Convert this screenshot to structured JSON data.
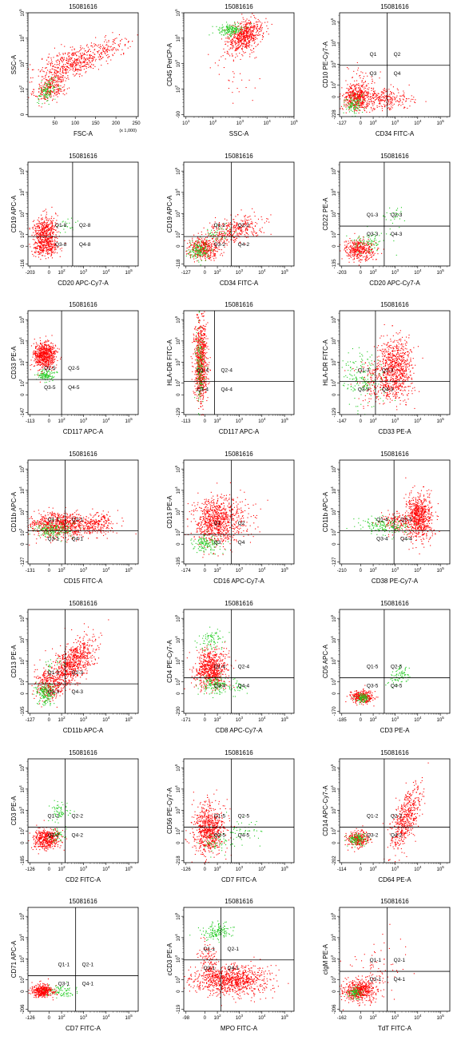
{
  "colors": {
    "primary_events": "#ff0000",
    "gated_events": "#22cc22",
    "axes": "#000000"
  },
  "chart_data": [
    {
      "type": "scatter",
      "title": "15081616",
      "xlabel": "FSC-A",
      "ylabel": "SSC-A",
      "x_scale": "linear",
      "y_scale": "log",
      "x_ticks": [
        "50",
        "100",
        "150",
        "200",
        "250"
      ],
      "x_unit_note": "(x 1,000)",
      "y_ticks": [
        "0",
        "10^2",
        "10^3",
        "10^4",
        "10^5"
      ],
      "quadrant_lines": null,
      "quadrant_labels": []
    },
    {
      "type": "scatter",
      "title": "15081616",
      "xlabel": "SSC-A",
      "ylabel": "CD45 PerCP-A",
      "x_scale": "log",
      "y_scale": "log",
      "x_ticks": [
        "10^1",
        "10^2",
        "10^3",
        "10^4",
        "10^5"
      ],
      "y_ticks": [
        "-90",
        "10^2",
        "10^3",
        "10^4",
        "10^5"
      ],
      "quadrant_lines": null,
      "quadrant_labels": []
    },
    {
      "type": "scatter",
      "title": "15081616",
      "xlabel": "CD34 FITC-A",
      "ylabel": "CD10 PE-Cy7-A",
      "x_scale": "biexponential",
      "y_scale": "biexponential",
      "x_ticks": [
        "-127",
        "0",
        "10^2",
        "10^3",
        "10^4",
        "10^5"
      ],
      "y_ticks": [
        "-228",
        "0",
        "10^2",
        "10^3",
        "10^4",
        "10^5"
      ],
      "quadrant_lines": {
        "x": 450,
        "y": 900
      },
      "quadrant_labels": [
        "Q1",
        "Q2",
        "Q3",
        "Q4"
      ]
    },
    {
      "type": "scatter",
      "title": "15081616",
      "xlabel": "CD20 APC-Cy7-A",
      "ylabel": "CD19 APC-A",
      "x_scale": "biexponential",
      "y_scale": "biexponential",
      "x_ticks": [
        "-203",
        "0",
        "10^2",
        "10^3",
        "10^4",
        "10^5"
      ],
      "y_ticks": [
        "-116",
        "0",
        "10^2",
        "10^3",
        "10^4",
        "10^5"
      ],
      "quadrant_lines": {
        "x": 330,
        "y": 75
      },
      "quadrant_labels": [
        "Q1-8",
        "Q2-8",
        "Q3-8",
        "Q4-8"
      ]
    },
    {
      "type": "scatter",
      "title": "15081616",
      "xlabel": "CD34 FITC-A",
      "ylabel": "CD19 APC-A",
      "x_scale": "biexponential",
      "y_scale": "biexponential",
      "x_ticks": [
        "-127",
        "0",
        "10^2",
        "10^3",
        "10^4",
        "10^5"
      ],
      "y_ticks": [
        "-118",
        "0",
        "10^2",
        "10^3",
        "10^4",
        "10^5"
      ],
      "quadrant_lines": {
        "x": 450,
        "y": 75
      },
      "quadrant_labels": [
        "Q1-2",
        "Q2-2",
        "Q3-2",
        "Q4-2"
      ]
    },
    {
      "type": "scatter",
      "title": "15081616",
      "xlabel": "CD20 APC-Cy7-A",
      "ylabel": "CD22 PE-A",
      "x_scale": "biexponential",
      "y_scale": "biexponential",
      "x_ticks": [
        "-203",
        "0",
        "10^2",
        "10^3",
        "10^4",
        "10^5"
      ],
      "y_ticks": [
        "-135",
        "0",
        "10^2",
        "10^3",
        "10^4",
        "10^5"
      ],
      "quadrant_lines": {
        "x": 330,
        "y": 260
      },
      "quadrant_labels": [
        "Q1-3",
        "Q2-3",
        "Q3-3",
        "Q4-3"
      ]
    },
    {
      "type": "scatter",
      "title": "15081616",
      "xlabel": "CD117 APC-A",
      "ylabel": "CD33 PE-A",
      "x_scale": "biexponential",
      "y_scale": "biexponential",
      "x_ticks": [
        "-113",
        "0",
        "10^2",
        "10^3",
        "10^4",
        "10^5"
      ],
      "y_ticks": [
        "-147",
        "0",
        "10^2",
        "10^3",
        "10^4",
        "10^5"
      ],
      "quadrant_lines": {
        "x": 100,
        "y": 150
      },
      "quadrant_labels": [
        "Q1-5",
        "Q2-5",
        "Q3-5",
        "Q4-5"
      ]
    },
    {
      "type": "scatter",
      "title": "15081616",
      "xlabel": "CD117 APC-A",
      "ylabel": "HLA-DR FITC-A",
      "x_scale": "biexponential",
      "y_scale": "biexponential",
      "x_ticks": [
        "-113",
        "0",
        "10^2",
        "10^3",
        "10^4",
        "10^5"
      ],
      "y_ticks": [
        "-129",
        "0",
        "10^2",
        "10^3",
        "10^4",
        "10^5"
      ],
      "quadrant_lines": {
        "x": 70,
        "y": 120
      },
      "quadrant_labels": [
        "Q1-4",
        "Q2-4",
        "Q3-4",
        "Q4-4"
      ]
    },
    {
      "type": "scatter",
      "title": "15081616",
      "xlabel": "CD33 PE-A",
      "ylabel": "HLA-DR FITC-A",
      "x_scale": "biexponential",
      "y_scale": "biexponential",
      "x_ticks": [
        "-147",
        "0",
        "10^2",
        "10^3",
        "10^4",
        "10^5"
      ],
      "y_ticks": [
        "-129",
        "0",
        "10^2",
        "10^3",
        "10^4",
        "10^5"
      ],
      "quadrant_lines": {
        "x": 130,
        "y": 120
      },
      "quadrant_labels": [
        "Q1-3",
        "Q2-3",
        "Q3-3",
        "Q4-3"
      ]
    },
    {
      "type": "scatter",
      "title": "15081616",
      "xlabel": "CD15 FITC-A",
      "ylabel": "CD11b APC-A",
      "x_scale": "biexponential",
      "y_scale": "biexponential",
      "x_ticks": [
        "-131",
        "0",
        "10^2",
        "10^3",
        "10^4",
        "10^5"
      ],
      "y_ticks": [
        "-127",
        "0",
        "10^2",
        "10^3",
        "10^4",
        "10^5"
      ],
      "quadrant_lines": {
        "x": 150,
        "y": 120
      },
      "quadrant_labels": [
        "Q1-1",
        "Q2-1",
        "Q3-1",
        "Q4-1"
      ]
    },
    {
      "type": "scatter",
      "title": "15081616",
      "xlabel": "CD16 APC-Cy7-A",
      "ylabel": "CD13 PE-A",
      "x_scale": "biexponential",
      "y_scale": "biexponential",
      "x_ticks": [
        "-174",
        "0",
        "10^2",
        "10^3",
        "10^4",
        "10^5"
      ],
      "y_ticks": [
        "-105",
        "0",
        "10^2",
        "10^3",
        "10^4",
        "10^5"
      ],
      "quadrant_lines": {
        "x": 450,
        "y": 75
      },
      "quadrant_labels": [
        "Q1",
        "Q2",
        "Q3",
        "Q4"
      ]
    },
    {
      "type": "scatter",
      "title": "15081616",
      "xlabel": "CD38 PE-Cy7-A",
      "ylabel": "CD11b APC-A",
      "x_scale": "biexponential",
      "y_scale": "biexponential",
      "x_ticks": [
        "-210",
        "0",
        "10^2",
        "10^3",
        "10^4",
        "10^5"
      ],
      "y_ticks": [
        "-127",
        "0",
        "10^2",
        "10^3",
        "10^4",
        "10^5"
      ],
      "quadrant_lines": {
        "x": 900,
        "y": 120
      },
      "quadrant_labels": [
        "Q1-4",
        "Q2-4",
        "Q3-4",
        "Q4-4"
      ]
    },
    {
      "type": "scatter",
      "title": "15081616",
      "xlabel": "CD11b APC-A",
      "ylabel": "CD13 PE-A",
      "x_scale": "biexponential",
      "y_scale": "biexponential",
      "x_ticks": [
        "-127",
        "0",
        "10^2",
        "10^3",
        "10^4",
        "10^5"
      ],
      "y_ticks": [
        "-105",
        "0",
        "10^2",
        "10^3",
        "10^4",
        "10^5"
      ],
      "quadrant_lines": {
        "x": 150,
        "y": 75
      },
      "quadrant_labels": [
        "Q1-3",
        "Q2-3",
        "Q3-3",
        "Q4-3"
      ]
    },
    {
      "type": "scatter",
      "title": "15081616",
      "xlabel": "CD8 APC-Cy7-A",
      "ylabel": "CD4 PE-Cy7-A",
      "x_scale": "biexponential",
      "y_scale": "biexponential",
      "x_ticks": [
        "-171",
        "0",
        "10^2",
        "10^3",
        "10^4",
        "10^5"
      ],
      "y_ticks": [
        "-230",
        "0",
        "10^2",
        "10^3",
        "10^4",
        "10^5"
      ],
      "quadrant_lines": {
        "x": 450,
        "y": 160
      },
      "quadrant_labels": [
        "Q1-4",
        "Q2-4",
        "Q3-4",
        "Q4-4"
      ]
    },
    {
      "type": "scatter",
      "title": "15081616",
      "xlabel": "CD3 PE-A",
      "ylabel": "CD5 APC-A",
      "x_scale": "biexponential",
      "y_scale": "biexponential",
      "x_ticks": [
        "-185",
        "0",
        "10^2",
        "10^3",
        "10^4",
        "10^5"
      ],
      "y_ticks": [
        "-170",
        "0",
        "10^2",
        "10^3",
        "10^4",
        "10^5"
      ],
      "quadrant_lines": {
        "x": 330,
        "y": 160
      },
      "quadrant_labels": [
        "Q1-5",
        "Q2-5",
        "Q3-5",
        "Q4-5"
      ]
    },
    {
      "type": "scatter",
      "title": "15081616",
      "xlabel": "CD2 FITC-A",
      "ylabel": "CD3 PE-A",
      "x_scale": "biexponential",
      "y_scale": "biexponential",
      "x_ticks": [
        "-126",
        "0",
        "10^2",
        "10^3",
        "10^4",
        "10^5"
      ],
      "y_ticks": [
        "-185",
        "0",
        "10^2",
        "10^3",
        "10^4",
        "10^5"
      ],
      "quadrant_lines": {
        "x": 150,
        "y": 160
      },
      "quadrant_labels": [
        "Q1-2",
        "Q2-2",
        "Q3-2",
        "Q4-2"
      ]
    },
    {
      "type": "scatter",
      "title": "15081616",
      "xlabel": "CD7 FITC-A",
      "ylabel": "CD56 PE-Cy7-A",
      "x_scale": "biexponential",
      "y_scale": "biexponential",
      "x_ticks": [
        "-126",
        "0",
        "10^2",
        "10^3",
        "10^4",
        "10^5"
      ],
      "y_ticks": [
        "-218",
        "0",
        "10^2",
        "10^3",
        "10^4",
        "10^5"
      ],
      "quadrant_lines": {
        "x": 450,
        "y": 160
      },
      "quadrant_labels": [
        "Q1-5",
        "Q2-5",
        "Q3-5",
        "Q4-5"
      ]
    },
    {
      "type": "scatter",
      "title": "15081616",
      "xlabel": "CD64 PE-A",
      "ylabel": "CD14 APC-Cy7-A",
      "x_scale": "biexponential",
      "y_scale": "biexponential",
      "x_ticks": [
        "-114",
        "0",
        "10^2",
        "10^3",
        "10^4",
        "10^5"
      ],
      "y_ticks": [
        "-202",
        "0",
        "10^2",
        "10^3",
        "10^4",
        "10^5"
      ],
      "quadrant_lines": {
        "x": 330,
        "y": 160
      },
      "quadrant_labels": [
        "Q1-2",
        "Q2-2",
        "Q3-2",
        "Q4-2"
      ]
    },
    {
      "type": "scatter",
      "title": "15081616",
      "xlabel": "CD7 FITC-A",
      "ylabel": "CD71 APC-A",
      "x_scale": "biexponential",
      "y_scale": "biexponential",
      "x_ticks": [
        "-126",
        "0",
        "10^2",
        "10^3",
        "10^4",
        "10^5"
      ],
      "y_ticks": [
        "-206",
        "0",
        "10^2",
        "10^3",
        "10^4",
        "10^5"
      ],
      "quadrant_lines": {
        "x": 450,
        "y": 160
      },
      "quadrant_labels": [
        "Q1-1",
        "Q2-1",
        "Q3-1",
        "Q4-1"
      ]
    },
    {
      "type": "scatter",
      "title": "15081616",
      "xlabel": "MPO FITC-A",
      "ylabel": "cCD3 PE-A",
      "x_scale": "biexponential",
      "y_scale": "biexponential",
      "x_ticks": [
        "-98",
        "0",
        "10^2",
        "10^3",
        "10^4",
        "10^5"
      ],
      "y_ticks": [
        "-119",
        "0",
        "10^2",
        "10^3",
        "10^4",
        "10^5"
      ],
      "quadrant_lines": {
        "x": 150,
        "y": 900
      },
      "quadrant_labels": [
        "Q1-1",
        "Q2-1",
        "Q3-1",
        "Q4-1"
      ]
    },
    {
      "type": "scatter",
      "title": "15081616",
      "xlabel": "TdT FITC-A",
      "ylabel": "cIgM PE-A",
      "x_scale": "biexponential",
      "y_scale": "biexponential",
      "x_ticks": [
        "-162",
        "0",
        "10^2",
        "10^3",
        "10^4",
        "10^5"
      ],
      "y_ticks": [
        "-206",
        "0",
        "10^2",
        "10^3",
        "10^4",
        "10^5"
      ],
      "quadrant_lines": {
        "x": 450,
        "y": 260
      },
      "quadrant_labels": [
        "Q1-1",
        "Q2-1",
        "Q3-1",
        "Q4-1"
      ]
    }
  ]
}
